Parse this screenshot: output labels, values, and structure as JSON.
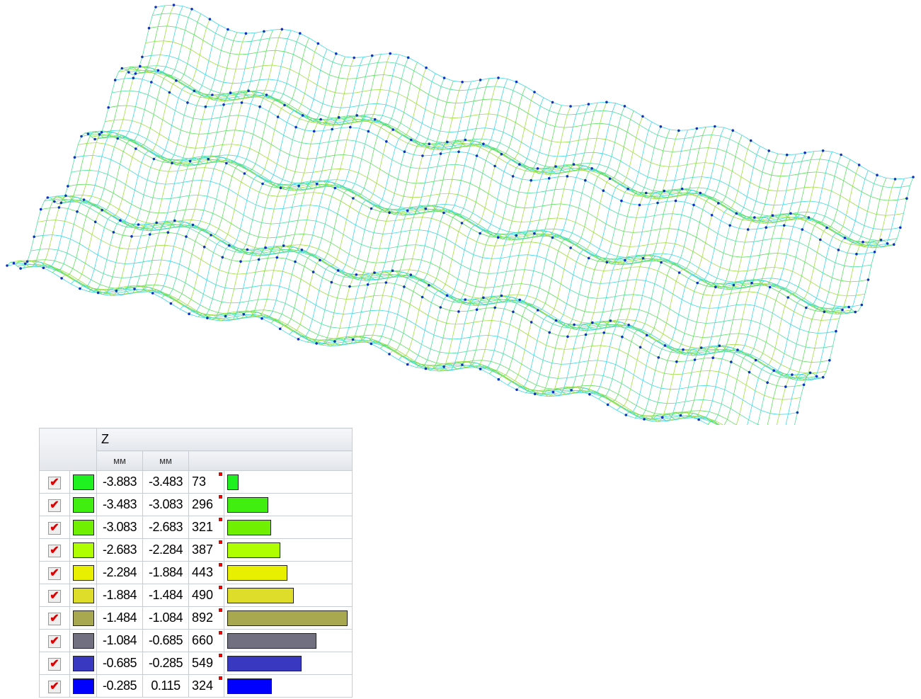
{
  "legend": {
    "quantity": "Z",
    "units": [
      "мм",
      "мм"
    ],
    "rows": [
      {
        "color": "#1ff01f",
        "from": -3.883,
        "to": -3.483,
        "count": 73
      },
      {
        "color": "#40ee10",
        "from": -3.483,
        "to": -3.083,
        "count": 296
      },
      {
        "color": "#70f000",
        "from": -3.083,
        "to": -2.683,
        "count": 321
      },
      {
        "color": "#b0ff00",
        "from": -2.683,
        "to": -2.284,
        "count": 387
      },
      {
        "color": "#e8f000",
        "from": -2.284,
        "to": -1.884,
        "count": 443
      },
      {
        "color": "#dede2a",
        "from": -1.884,
        "to": -1.484,
        "count": 490
      },
      {
        "color": "#a8a850",
        "from": -1.484,
        "to": -1.084,
        "count": 892
      },
      {
        "color": "#707080",
        "from": -1.084,
        "to": -0.685,
        "count": 660
      },
      {
        "color": "#3838c0",
        "from": -0.685,
        "to": -0.285,
        "count": 549
      },
      {
        "color": "#0000ff",
        "from": -0.285,
        "to": 0.115,
        "count": 324
      }
    ]
  }
}
